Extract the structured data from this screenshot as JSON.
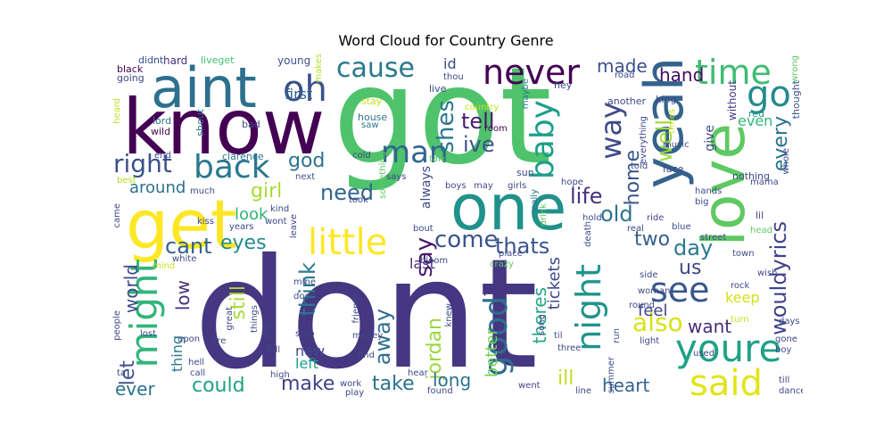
{
  "title": "Word Cloud for Country Genre",
  "words": [
    {
      "text": "dont",
      "color": "#453781"
    },
    {
      "text": "got",
      "color": "#4ec36b"
    },
    {
      "text": "know",
      "color": "#440154"
    },
    {
      "text": "aint",
      "color": "#2d708e"
    },
    {
      "text": "get",
      "color": "#fde725"
    },
    {
      "text": "one",
      "color": "#20918b"
    },
    {
      "text": "love",
      "color": "#5ec962"
    },
    {
      "text": "yeah",
      "color": "#33638d"
    },
    {
      "text": "might",
      "color": "#31b57b"
    },
    {
      "text": "back",
      "color": "#2a788e"
    },
    {
      "text": "oh",
      "color": "#3b528b"
    },
    {
      "text": "cause",
      "color": "#2a788e"
    },
    {
      "text": "never",
      "color": "#440154"
    },
    {
      "text": "time",
      "color": "#3fbc73"
    },
    {
      "text": "go",
      "color": "#238a8d"
    },
    {
      "text": "youre",
      "color": "#1fa187"
    },
    {
      "text": "said",
      "color": "#e3e418"
    },
    {
      "text": "see",
      "color": "#39568c"
    },
    {
      "text": "night",
      "color": "#1f948c"
    },
    {
      "text": "little",
      "color": "#fde725"
    },
    {
      "text": "baby",
      "color": "#1f9e89"
    },
    {
      "text": "good",
      "color": "#2e6e8e"
    },
    {
      "text": "man",
      "color": "#32648e"
    },
    {
      "text": "way",
      "color": "#3e4a89"
    },
    {
      "text": "right",
      "color": "#3b518b"
    },
    {
      "text": "also",
      "color": "#d8e219"
    },
    {
      "text": "wouldyrics",
      "color": "#404387"
    },
    {
      "text": "every",
      "color": "#2c728e"
    },
    {
      "text": "well",
      "color": "#9fda3a"
    },
    {
      "text": "tell",
      "color": "#481d6f"
    },
    {
      "text": "ive",
      "color": "#3b528b"
    },
    {
      "text": "shes",
      "color": "#2a788e"
    },
    {
      "text": "made",
      "color": "#3b518b"
    },
    {
      "text": "hand",
      "color": "#460b5e"
    },
    {
      "text": "god",
      "color": "#2c728e"
    },
    {
      "text": "girl",
      "color": "#a8db34"
    },
    {
      "text": "need",
      "color": "#31668e"
    },
    {
      "text": "around",
      "color": "#2e6f8e"
    },
    {
      "text": "life",
      "color": "#46317e"
    },
    {
      "text": "old",
      "color": "#2d718e"
    },
    {
      "text": "home",
      "color": "#3a548c"
    },
    {
      "text": "cant",
      "color": "#33628d"
    },
    {
      "text": "eyes",
      "color": "#238a8d"
    },
    {
      "text": "look",
      "color": "#31b57b"
    },
    {
      "text": "say",
      "color": "#48186a"
    },
    {
      "text": "think",
      "color": "#2a788e"
    },
    {
      "text": "come",
      "color": "#3a548c"
    },
    {
      "text": "thats",
      "color": "#3a548c"
    },
    {
      "text": "two",
      "color": "#35608d"
    },
    {
      "text": "day",
      "color": "#297a8e"
    },
    {
      "text": "us",
      "color": "#3f4889"
    },
    {
      "text": "keep",
      "color": "#d5e21a"
    },
    {
      "text": "world",
      "color": "#3e4a89"
    },
    {
      "text": "let",
      "color": "#3b528b"
    },
    {
      "text": "low",
      "color": "#46327e"
    },
    {
      "text": "still",
      "color": "#a8db34"
    },
    {
      "text": "away",
      "color": "#2e6e8e"
    },
    {
      "text": "put",
      "color": "#46327e"
    },
    {
      "text": "jordan",
      "color": "#98d83e"
    },
    {
      "text": "theres",
      "color": "#22a884"
    },
    {
      "text": "last",
      "color": "#472c7a"
    },
    {
      "text": "better",
      "color": "#73d056"
    },
    {
      "text": "tickets",
      "color": "#3f4788"
    },
    {
      "text": "feel",
      "color": "#404688"
    },
    {
      "text": "want",
      "color": "#472d7b"
    },
    {
      "text": "heart",
      "color": "#33638d"
    },
    {
      "text": "ever",
      "color": "#2c728e"
    },
    {
      "text": "could",
      "color": "#1fa187"
    },
    {
      "text": "make",
      "color": "#424086"
    },
    {
      "text": "new",
      "color": "#3e4989"
    },
    {
      "text": "left",
      "color": "#1f9e89"
    },
    {
      "text": "take",
      "color": "#2d718e"
    },
    {
      "text": "long",
      "color": "#2c728e"
    },
    {
      "text": "ill",
      "color": "#c2df23"
    },
    {
      "text": "thing",
      "color": "#2a788e"
    },
    {
      "text": "first",
      "color": "#32648e"
    },
    {
      "text": "id",
      "color": "#3e4a89"
    },
    {
      "text": "always",
      "color": "#3e4989"
    },
    {
      "text": "even",
      "color": "#35b779"
    },
    {
      "text": "give",
      "color": "#3e4a89"
    },
    {
      "text": "without",
      "color": "#443a83"
    },
    {
      "text": "hard",
      "color": "#46307e"
    },
    {
      "text": "didnt",
      "color": "#3b528b"
    },
    {
      "text": "liveget",
      "color": "#44bf70"
    },
    {
      "text": "young",
      "color": "#3b528b"
    },
    {
      "text": "black",
      "color": "#440154"
    },
    {
      "text": "going",
      "color": "#3e4989"
    },
    {
      "text": "makes",
      "color": "#b5de2b"
    },
    {
      "text": "heard",
      "color": "#c0df25"
    },
    {
      "text": "lord",
      "color": "#2f6c8e"
    },
    {
      "text": "wild",
      "color": "#440154"
    },
    {
      "text": "shout",
      "color": "#2a788e"
    },
    {
      "text": "bad",
      "color": "#3e4a89"
    },
    {
      "text": "house",
      "color": "#2a778e"
    },
    {
      "text": "saw",
      "color": "#2c728e"
    },
    {
      "text": "stay",
      "color": "#c8e020"
    },
    {
      "text": "country",
      "color": "#c8e020"
    },
    {
      "text": "room",
      "color": "#440154"
    },
    {
      "text": "thou",
      "color": "#3e4989"
    },
    {
      "text": "live",
      "color": "#3e4989"
    },
    {
      "text": "hey",
      "color": "#3e4989"
    },
    {
      "text": "road",
      "color": "#3e4989"
    },
    {
      "text": "another",
      "color": "#3e4989"
    },
    {
      "text": "king",
      "color": "#3e4989"
    },
    {
      "text": "red",
      "color": "#21918c"
    },
    {
      "text": "thought",
      "color": "#3b528b"
    },
    {
      "text": "wrong",
      "color": "#5ec962"
    },
    {
      "text": "whole",
      "color": "#3e4989"
    },
    {
      "text": "end",
      "color": "#3e4989"
    },
    {
      "text": "best",
      "color": "#b5de2b"
    },
    {
      "text": "clarence",
      "color": "#2a788e"
    },
    {
      "text": "next",
      "color": "#3b528b"
    },
    {
      "text": "much",
      "color": "#3e4989"
    },
    {
      "text": "cold",
      "color": "#3e4989"
    },
    {
      "text": "something",
      "color": "#5ec962"
    },
    {
      "text": "talk",
      "color": "#5ec962"
    },
    {
      "text": "maybe",
      "color": "#2a788e"
    },
    {
      "text": "sun",
      "color": "#3e4989"
    },
    {
      "text": "times",
      "color": "#c8e020"
    },
    {
      "text": "music",
      "color": "#3e4989"
    },
    {
      "text": "told",
      "color": "#3e4989"
    },
    {
      "text": "everything",
      "color": "#3e4989"
    },
    {
      "text": "hope",
      "color": "#3e4989"
    },
    {
      "text": "says",
      "color": "#3e4989"
    },
    {
      "text": "boys",
      "color": "#3e4989"
    },
    {
      "text": "may",
      "color": "#3e4989"
    },
    {
      "text": "girls",
      "color": "#3e4989"
    },
    {
      "text": "face",
      "color": "#3e4989"
    },
    {
      "text": "nothing",
      "color": "#3e4989"
    },
    {
      "text": "mama",
      "color": "#3e4989"
    },
    {
      "text": "hands",
      "color": "#3e4989"
    },
    {
      "text": "big",
      "color": "#3e4989"
    },
    {
      "text": "came",
      "color": "#3e4989"
    },
    {
      "text": "took",
      "color": "#3e4989"
    },
    {
      "text": "really",
      "color": "#2a788e"
    },
    {
      "text": "drink",
      "color": "#5ec962"
    },
    {
      "text": "hold",
      "color": "#3e4989"
    },
    {
      "text": "ride",
      "color": "#3e4989"
    },
    {
      "text": "real",
      "color": "#3e4989"
    },
    {
      "text": "lil",
      "color": "#3e4989"
    },
    {
      "text": "kiss",
      "color": "#3e4989"
    },
    {
      "text": "years",
      "color": "#3e4989"
    },
    {
      "text": "kind",
      "color": "#3e4989"
    },
    {
      "text": "wont",
      "color": "#3e4989"
    },
    {
      "text": "leave",
      "color": "#3e4989"
    },
    {
      "text": "bout",
      "color": "#3e4989"
    },
    {
      "text": "blue",
      "color": "#3e4989"
    },
    {
      "text": "head",
      "color": "#5ec962"
    },
    {
      "text": "street",
      "color": "#3e4989"
    },
    {
      "text": "place",
      "color": "#3e4989"
    },
    {
      "text": "crazy",
      "color": "#5ec962"
    },
    {
      "text": "death",
      "color": "#3e4989"
    },
    {
      "text": "town",
      "color": "#3e4989"
    },
    {
      "text": "white",
      "color": "#3e4989"
    },
    {
      "text": "mind",
      "color": "#c8e020"
    },
    {
      "text": "bloom",
      "color": "#3e4989"
    },
    {
      "text": "mine",
      "color": "#3e4989"
    },
    {
      "text": "door",
      "color": "#3e4989"
    },
    {
      "text": "side",
      "color": "#3e4989"
    },
    {
      "text": "rock",
      "color": "#3e4989"
    },
    {
      "text": "wish",
      "color": "#3e4989"
    },
    {
      "text": "woman",
      "color": "#3e4989"
    },
    {
      "text": "people",
      "color": "#3e4989"
    },
    {
      "text": "great",
      "color": "#3e4989"
    },
    {
      "text": "things",
      "color": "#3e4989"
    },
    {
      "text": "friends",
      "color": "#3e4989"
    },
    {
      "text": "knew",
      "color": "#3e4989"
    },
    {
      "text": "song",
      "color": "#3e4989"
    },
    {
      "text": "round",
      "color": "#3e4989"
    },
    {
      "text": "turn",
      "color": "#c8e020"
    },
    {
      "text": "days",
      "color": "#3e4989"
    },
    {
      "text": "lost",
      "color": "#3e4989"
    },
    {
      "text": "upon",
      "color": "#3e4989"
    },
    {
      "text": "fire",
      "color": "#3e4989"
    },
    {
      "text": "city",
      "color": "#3e4989"
    },
    {
      "text": "stop",
      "color": "#3e4989"
    },
    {
      "text": "money",
      "color": "#3e4989"
    },
    {
      "text": "til",
      "color": "#3e4989"
    },
    {
      "text": "light",
      "color": "#3e4989"
    },
    {
      "text": "gone",
      "color": "#3e4989"
    },
    {
      "text": "fall",
      "color": "#3e4989"
    },
    {
      "text": "find",
      "color": "#3e4989"
    },
    {
      "text": "three",
      "color": "#3e4989"
    },
    {
      "text": "run",
      "color": "#3e4989"
    },
    {
      "text": "hell",
      "color": "#3e4989"
    },
    {
      "text": "call",
      "color": "#3e4989"
    },
    {
      "text": "found",
      "color": "#3e4989"
    },
    {
      "text": "summer",
      "color": "#3e4989"
    },
    {
      "text": "used",
      "color": "#3e4989"
    },
    {
      "text": "boy",
      "color": "#3e4989"
    },
    {
      "text": "ta",
      "color": "#3e4989"
    },
    {
      "text": "high",
      "color": "#3e4989"
    },
    {
      "text": "work",
      "color": "#3e4989"
    },
    {
      "text": "hear",
      "color": "#3e4989"
    },
    {
      "text": "went",
      "color": "#3e4989"
    },
    {
      "text": "line",
      "color": "#3e4989"
    },
    {
      "text": "till",
      "color": "#3e4989"
    },
    {
      "text": "dance",
      "color": "#3e4989"
    },
    {
      "text": "play",
      "color": "#3e4989"
    }
  ]
}
